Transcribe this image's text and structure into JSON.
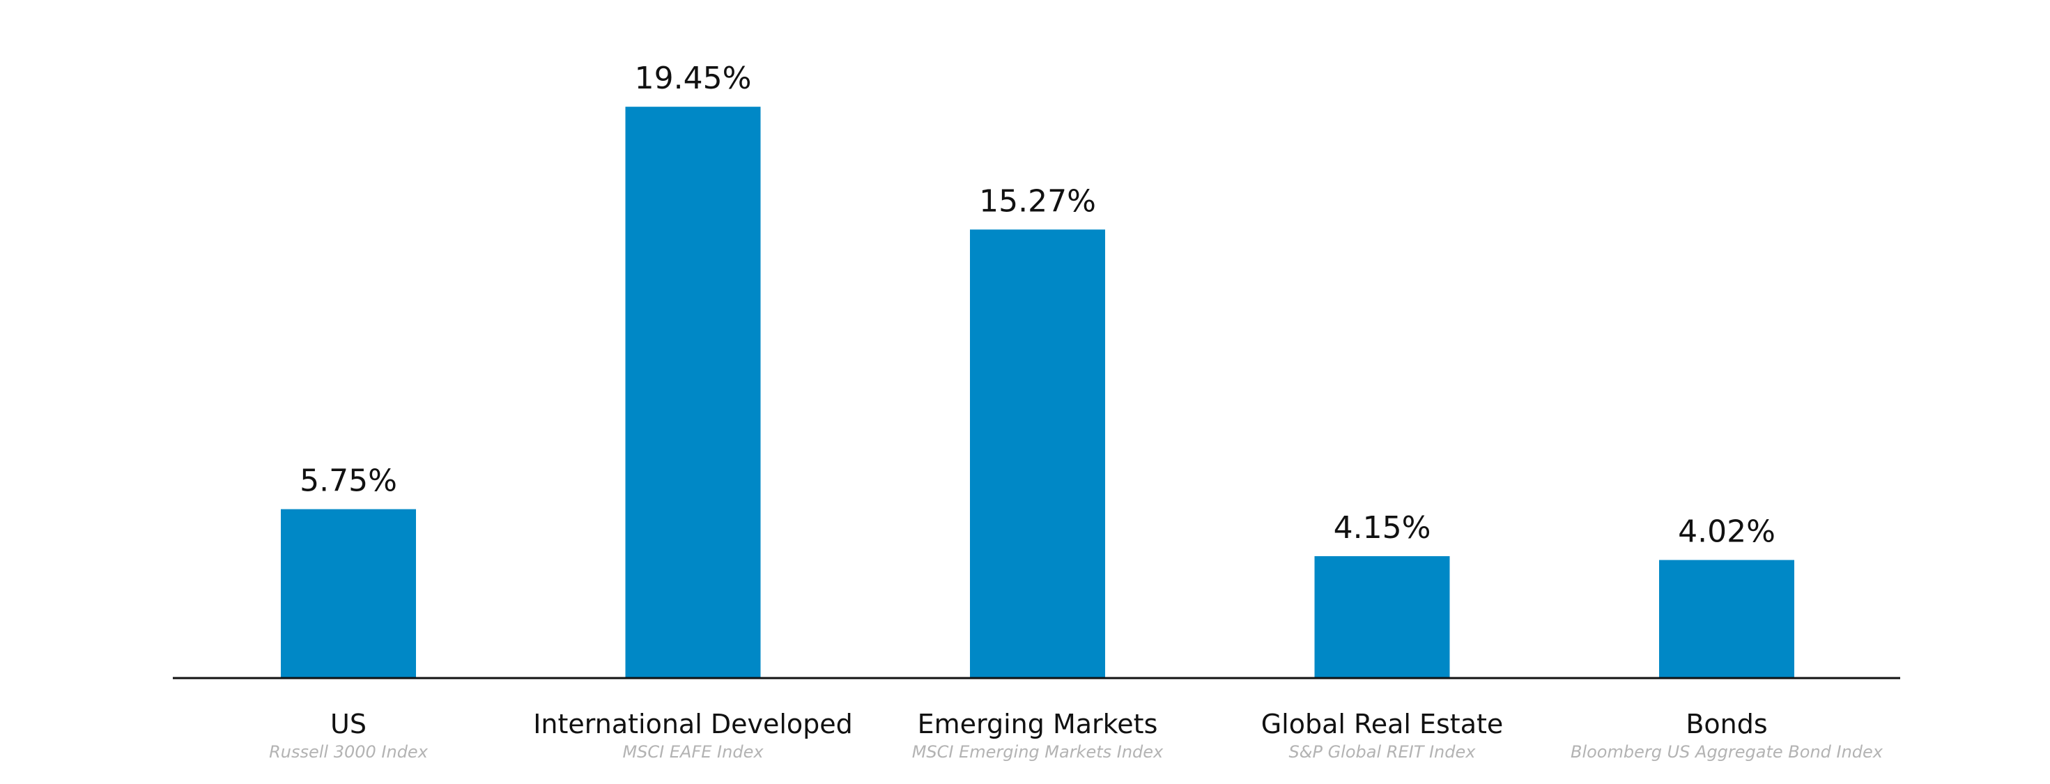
{
  "chart_data": {
    "type": "bar",
    "categories": [
      "US",
      "International Developed",
      "Emerging Markets",
      "Global Real Estate",
      "Bonds"
    ],
    "subtitles": [
      "Russell 3000 Index",
      "MSCI EAFE Index",
      "MSCI Emerging Markets Index",
      "S&P Global REIT Index",
      "Bloomberg US Aggregate Bond Index"
    ],
    "values": [
      5.75,
      19.45,
      15.27,
      4.15,
      4.02
    ],
    "value_labels": [
      "5.75%",
      "19.45%",
      "15.27%",
      "4.15%",
      "4.02%"
    ],
    "ylim": [
      0,
      20
    ],
    "grid": false,
    "legend": "none",
    "colors": {
      "bar": "#0088C6",
      "text": "#111111",
      "subtitle": "#b3b3b3",
      "axis": "#111111"
    }
  }
}
